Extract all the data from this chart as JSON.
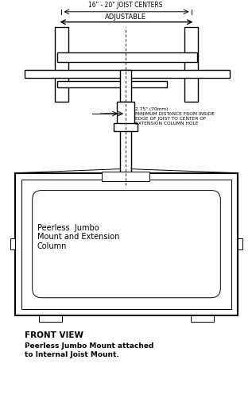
{
  "title": "FRONT VIEW",
  "subtitle": "Peerless Jumbo Mount attached\nto Internal Joist Mount.",
  "bg_color": "#ffffff",
  "line_color": "#000000",
  "fig_width": 3.17,
  "fig_height": 5.11,
  "annotation_2_75": "2.75\" (70mm)\nMINIMUM DISTANCE FROM INSIDE\nEDGE OF JOIST TO CENTER OF\nEXTENSION COLUMN HOLE",
  "annotation_joist": "16\" - 20\" JOIST CENTERS",
  "annotation_adj": "ADJUSTABLE"
}
